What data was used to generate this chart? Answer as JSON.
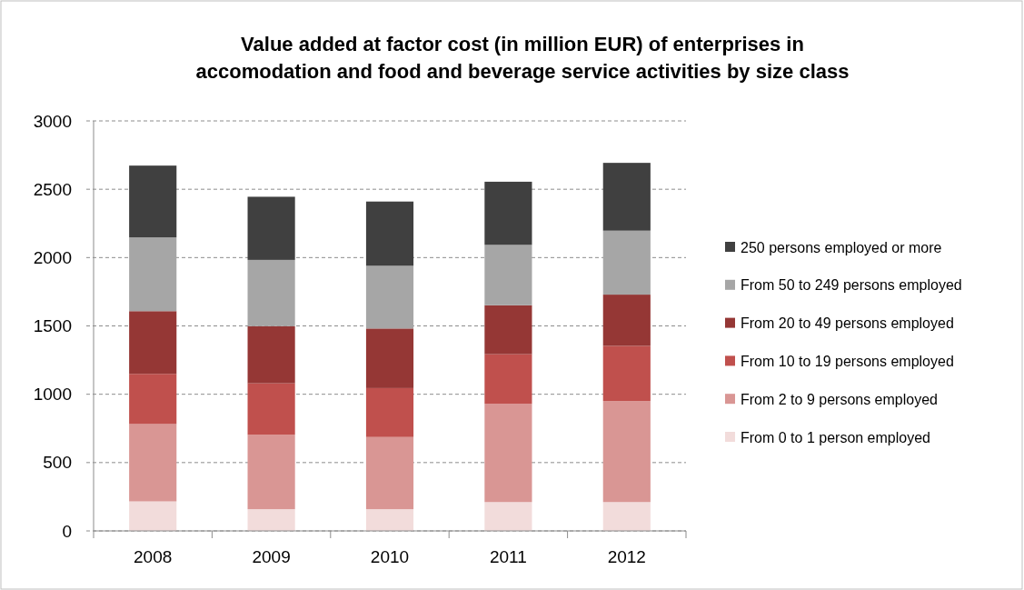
{
  "chart_data": {
    "type": "bar",
    "title": "Value added at factor cost (in million EUR) of enterprises in\naccomodation and food and beverage service activities by size class",
    "categories": [
      "2008",
      "2009",
      "2010",
      "2011",
      "2012"
    ],
    "stacked": true,
    "series": [
      {
        "name": "From 0 to 1 person employed",
        "color": "#f2dcdb",
        "values": [
          216,
          159,
          159,
          211,
          211
        ]
      },
      {
        "name": "From 2 to 9 persons employed",
        "color": "#d99694",
        "values": [
          566,
          545,
          528,
          719,
          739
        ]
      },
      {
        "name": "From 10 to 19 persons employed",
        "color": "#c0504d",
        "values": [
          367,
          376,
          358,
          363,
          404
        ]
      },
      {
        "name": "From 20 to 49 persons employed",
        "color": "#953735",
        "values": [
          459,
          418,
          436,
          358,
          375
        ]
      },
      {
        "name": "From 50 to 249 persons employed",
        "color": "#a6a6a6",
        "values": [
          540,
          485,
          459,
          442,
          468
        ]
      },
      {
        "name": "250 persons employed or more",
        "color": "#404040",
        "values": [
          525,
          462,
          470,
          462,
          496
        ]
      }
    ],
    "ylim": [
      0,
      3000
    ],
    "yticks": [
      0,
      500,
      1000,
      1500,
      2000,
      2500,
      3000
    ],
    "grid": "y",
    "legend": "right"
  }
}
